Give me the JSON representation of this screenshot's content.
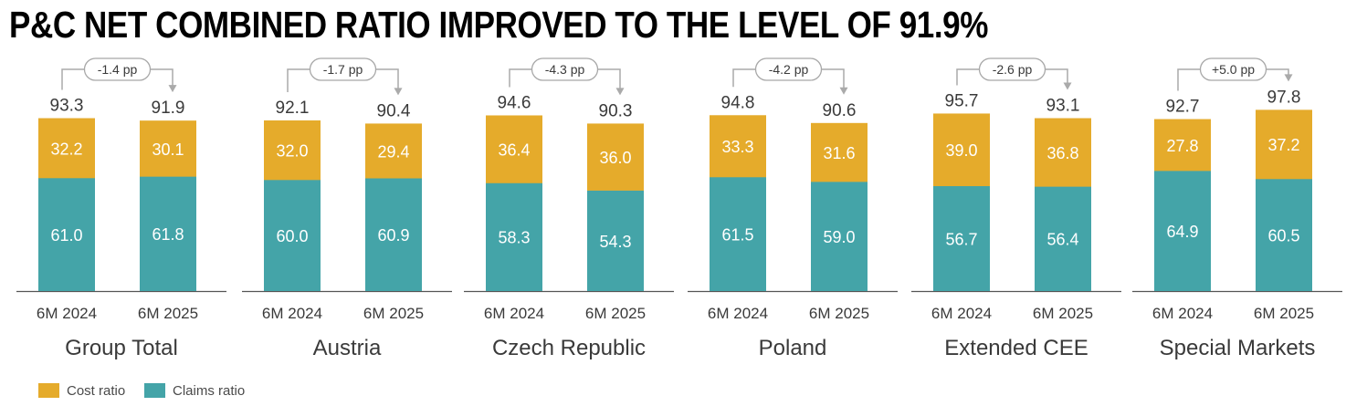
{
  "title": "P&C NET COMBINED RATIO IMPROVED TO THE LEVEL OF 91.9%",
  "colors": {
    "cost": "#E5AB2B",
    "claims": "#44A4A8",
    "arrow": "#aaaaaa"
  },
  "legend": {
    "cost_label": "Cost ratio",
    "claims_label": "Claims ratio"
  },
  "chart_data": {
    "type": "bar",
    "stacked": true,
    "categories": [
      "6M 2024",
      "6M 2025"
    ],
    "series_names": [
      "Claims ratio",
      "Cost ratio"
    ],
    "panels": [
      {
        "name": "Group Total",
        "change": "-1.4 pp",
        "totals": [
          "93.3",
          "91.9"
        ],
        "claims": [
          61.0,
          61.8
        ],
        "cost": [
          32.2,
          30.1
        ]
      },
      {
        "name": "Austria",
        "change": "-1.7 pp",
        "totals": [
          "92.1",
          "90.4"
        ],
        "claims": [
          60.0,
          60.9
        ],
        "cost": [
          32.0,
          29.4
        ]
      },
      {
        "name": "Czech Republic",
        "change": "-4.3 pp",
        "totals": [
          "94.6",
          "90.3"
        ],
        "claims": [
          58.3,
          54.3
        ],
        "cost": [
          36.4,
          36.0
        ]
      },
      {
        "name": "Poland",
        "change": "-4.2 pp",
        "totals": [
          "94.8",
          "90.6"
        ],
        "claims": [
          61.5,
          59.0
        ],
        "cost": [
          33.3,
          31.6
        ]
      },
      {
        "name": "Extended CEE",
        "change": "-2.6 pp",
        "totals": [
          "95.7",
          "93.1"
        ],
        "claims": [
          56.7,
          56.4
        ],
        "cost": [
          39.0,
          36.8
        ]
      },
      {
        "name": "Special Markets",
        "change": "+5.0 pp",
        "totals": [
          "92.7",
          "97.8"
        ],
        "claims": [
          64.9,
          60.5
        ],
        "cost": [
          27.8,
          37.2
        ]
      }
    ]
  }
}
